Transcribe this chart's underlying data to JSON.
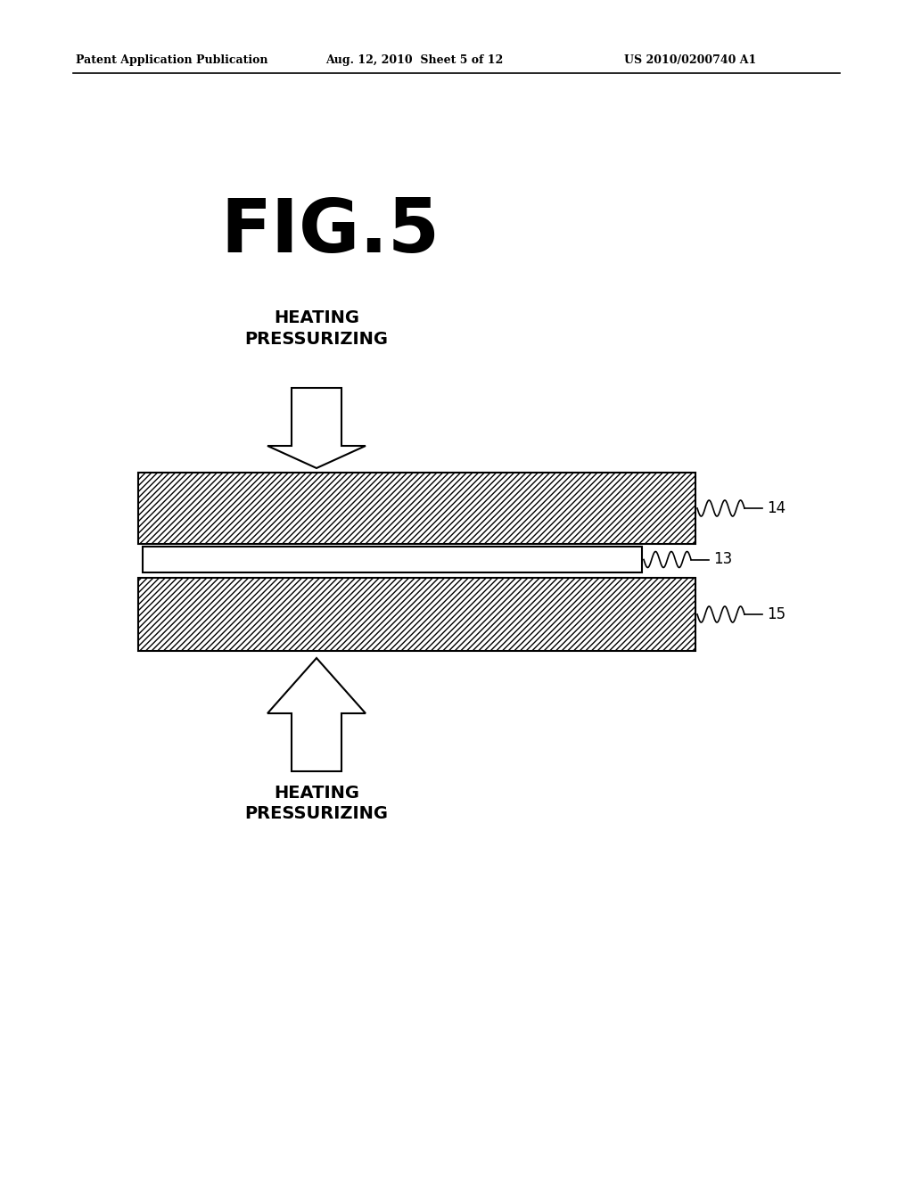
{
  "header_left": "Patent Application Publication",
  "header_mid": "Aug. 12, 2010  Sheet 5 of 12",
  "header_right": "US 2010/0200740 A1",
  "figure_label": "FIG.5",
  "top_label": "HEATING\nPRESSURIZING",
  "bottom_label": "HEATING\nPRESSURIZING",
  "layer14_label": "14",
  "layer13_label": "13",
  "layer15_label": "15",
  "bg_color": "#ffffff"
}
